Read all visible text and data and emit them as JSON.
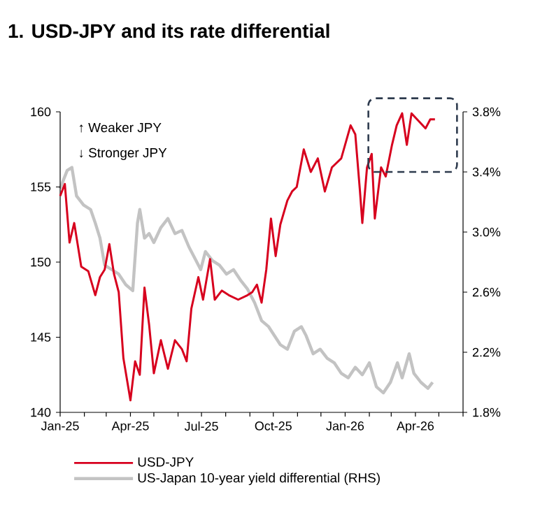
{
  "chart_data": {
    "type": "line",
    "title": "1. USD-JPY and its rate differential",
    "annotations": [
      "↑ Weaker JPY",
      "↓ Stronger JPY"
    ],
    "xlim": [
      "2025-01-01",
      "2026-06-01"
    ],
    "xticks": [
      {
        "value": "2025-01-01",
        "label": "Jan-25"
      },
      {
        "value": "2025-02-01",
        "label": null
      },
      {
        "value": "2025-03-01",
        "label": null
      },
      {
        "value": "2025-04-01",
        "label": "Apr-25"
      },
      {
        "value": "2025-05-01",
        "label": null
      },
      {
        "value": "2025-06-01",
        "label": null
      },
      {
        "value": "2025-07-01",
        "label": "Jul-25"
      },
      {
        "value": "2025-08-01",
        "label": null
      },
      {
        "value": "2025-09-01",
        "label": null
      },
      {
        "value": "2025-10-01",
        "label": "Oct-25"
      },
      {
        "value": "2025-11-01",
        "label": null
      },
      {
        "value": "2025-12-01",
        "label": null
      },
      {
        "value": "2026-01-01",
        "label": "Jan-26"
      },
      {
        "value": "2026-02-01",
        "label": null
      },
      {
        "value": "2026-03-01",
        "label": null
      },
      {
        "value": "2026-04-01",
        "label": "Apr-26"
      },
      {
        "value": "2026-05-01",
        "label": null
      },
      {
        "value": "2026-06-01",
        "label": null
      }
    ],
    "ylim": [
      140,
      160
    ],
    "yticks": [
      140,
      145,
      150,
      155,
      160
    ],
    "y2lim": [
      1.8,
      3.8
    ],
    "y2ticks": [
      {
        "value": 1.8,
        "label": "1.8%"
      },
      {
        "value": 2.2,
        "label": "2.2%"
      },
      {
        "value": 2.6,
        "label": "2.6%"
      },
      {
        "value": 3.0,
        "label": "3.0%"
      },
      {
        "value": 3.4,
        "label": "3.4%"
      },
      {
        "value": 3.8,
        "label": "3.8%"
      }
    ],
    "legend": "bottom",
    "series": [
      {
        "name": "USD-JPY",
        "color": "#d7001e",
        "axis": "y",
        "x": [
          "2025-01-01",
          "2025-01-07",
          "2025-01-13",
          "2025-01-19",
          "2025-01-28",
          "2025-02-06",
          "2025-02-15",
          "2025-02-21",
          "2025-02-27",
          "2025-03-05",
          "2025-03-11",
          "2025-03-17",
          "2025-03-23",
          "2025-04-01",
          "2025-04-07",
          "2025-04-13",
          "2025-04-19",
          "2025-04-25",
          "2025-05-01",
          "2025-05-10",
          "2025-05-19",
          "2025-05-28",
          "2025-06-06",
          "2025-06-12",
          "2025-06-18",
          "2025-06-27",
          "2025-07-03",
          "2025-07-12",
          "2025-07-18",
          "2025-07-27",
          "2025-08-05",
          "2025-08-17",
          "2025-08-29",
          "2025-09-04",
          "2025-09-10",
          "2025-09-16",
          "2025-09-22",
          "2025-09-28",
          "2025-10-04",
          "2025-10-10",
          "2025-10-19",
          "2025-10-25",
          "2025-10-31",
          "2025-11-09",
          "2025-11-18",
          "2025-11-27",
          "2025-12-06",
          "2025-12-15",
          "2025-12-27",
          "2026-01-08",
          "2026-01-14",
          "2026-01-20",
          "2026-01-23",
          "2026-01-29",
          "2026-02-04",
          "2026-02-08",
          "2026-02-16",
          "2026-02-22",
          "2026-03-02",
          "2026-03-08",
          "2026-03-15",
          "2026-03-21",
          "2026-03-27",
          "2026-04-05",
          "2026-04-14",
          "2026-04-20",
          "2026-04-26"
        ],
        "values": [
          154.4,
          155.2,
          151.3,
          152.6,
          149.7,
          149.4,
          147.8,
          149.0,
          149.5,
          151.2,
          149.2,
          148.0,
          143.6,
          140.8,
          143.4,
          142.5,
          148.3,
          145.8,
          142.6,
          144.8,
          142.9,
          144.8,
          144.2,
          143.4,
          146.9,
          149.0,
          147.5,
          150.2,
          147.5,
          148.1,
          147.8,
          147.5,
          147.8,
          148.0,
          148.5,
          147.3,
          149.5,
          152.9,
          150.4,
          152.5,
          154.1,
          154.7,
          155.0,
          157.5,
          156.0,
          156.9,
          154.7,
          156.3,
          156.9,
          159.1,
          158.5,
          154.7,
          152.6,
          156.3,
          157.2,
          152.9,
          156.3,
          155.7,
          157.8,
          159.1,
          159.9,
          157.8,
          159.9,
          159.4,
          158.9,
          159.5,
          159.5
        ]
      },
      {
        "name": "US-Japan 10-year yield differential (RHS)",
        "color": "#c3c3c3",
        "axis": "y2",
        "x": [
          "2025-01-01",
          "2025-01-10",
          "2025-01-16",
          "2025-01-22",
          "2025-01-31",
          "2025-02-09",
          "2025-02-15",
          "2025-02-21",
          "2025-02-27",
          "2025-03-08",
          "2025-03-17",
          "2025-03-26",
          "2025-04-04",
          "2025-04-10",
          "2025-04-13",
          "2025-04-19",
          "2025-04-25",
          "2025-05-01",
          "2025-05-10",
          "2025-05-19",
          "2025-05-28",
          "2025-06-06",
          "2025-06-15",
          "2025-06-24",
          "2025-06-30",
          "2025-07-06",
          "2025-07-15",
          "2025-07-24",
          "2025-08-02",
          "2025-08-11",
          "2025-08-20",
          "2025-08-29",
          "2025-09-07",
          "2025-09-16",
          "2025-09-25",
          "2025-10-10",
          "2025-10-19",
          "2025-10-28",
          "2025-11-06",
          "2025-11-12",
          "2025-11-21",
          "2025-11-30",
          "2025-12-09",
          "2025-12-18",
          "2025-12-27",
          "2026-01-05",
          "2026-01-14",
          "2026-01-23",
          "2026-02-01",
          "2026-02-10",
          "2026-02-19",
          "2026-02-28",
          "2026-03-09",
          "2026-03-15",
          "2026-03-24",
          "2026-03-30",
          "2026-04-08",
          "2026-04-17",
          "2026-04-23"
        ],
        "values": [
          3.29,
          3.41,
          3.43,
          3.24,
          3.18,
          3.15,
          3.06,
          2.96,
          2.78,
          2.75,
          2.72,
          2.65,
          2.61,
          3.06,
          3.15,
          2.96,
          2.99,
          2.93,
          3.03,
          3.09,
          2.99,
          3.01,
          2.9,
          2.81,
          2.75,
          2.87,
          2.81,
          2.78,
          2.72,
          2.75,
          2.68,
          2.62,
          2.53,
          2.41,
          2.37,
          2.25,
          2.22,
          2.34,
          2.37,
          2.31,
          2.19,
          2.22,
          2.16,
          2.13,
          2.06,
          2.03,
          2.1,
          2.05,
          2.13,
          1.97,
          1.93,
          2.0,
          2.13,
          2.03,
          2.19,
          2.06,
          2.0,
          1.96,
          2.0
        ]
      }
    ]
  }
}
